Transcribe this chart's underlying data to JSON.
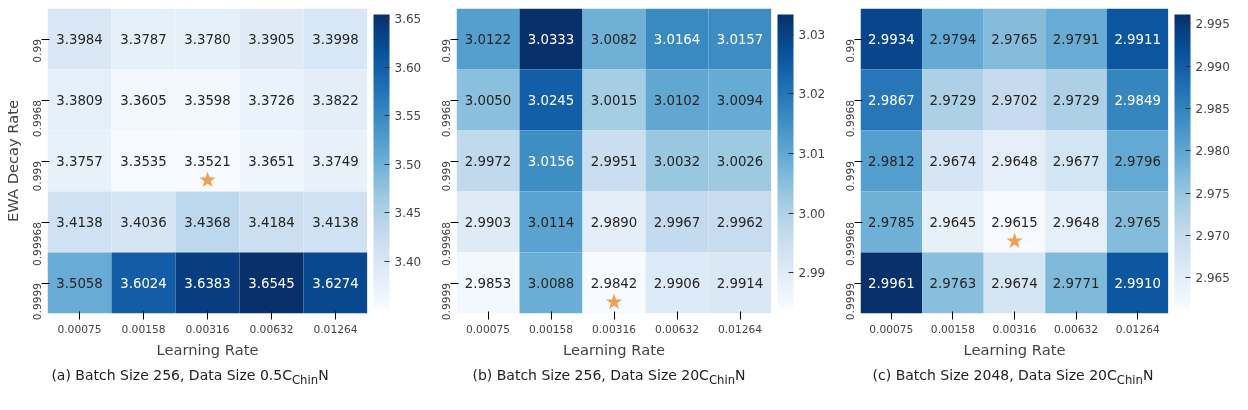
{
  "chart_data": [
    {
      "type": "heatmap",
      "title": "(a) Batch Size 256, Data Size 0.5C$_{Chin}$N",
      "xlabel": "Learning Rate",
      "ylabel": "EWA Decay Rate",
      "categories": [
        "0.00075",
        "0.00158",
        "0.00316",
        "0.00632",
        "0.01264"
      ],
      "y_categories": [
        "0.99",
        "0.9968",
        "0.999",
        "0.99968",
        "0.9999"
      ],
      "cells": [
        [
          3.3984,
          3.3787,
          3.378,
          3.3905,
          3.3998
        ],
        [
          3.3809,
          3.3605,
          3.3598,
          3.3726,
          3.3822
        ],
        [
          3.3757,
          3.3535,
          3.3521,
          3.3651,
          3.3749
        ],
        [
          3.4138,
          3.4036,
          3.4368,
          3.4184,
          3.4138
        ],
        [
          3.5058,
          3.6024,
          3.6383,
          3.6545,
          3.6274
        ]
      ],
      "cell_labels": [
        [
          "3.3984",
          "3.3787",
          "3.3780",
          "3.3905",
          "3.3998"
        ],
        [
          "3.3809",
          "3.3605",
          "3.3598",
          "3.3726",
          "3.3822"
        ],
        [
          "3.3757",
          "3.3535",
          "3.3521",
          "3.3651",
          "3.3749"
        ],
        [
          "3.4138",
          "3.4036",
          "3.4368",
          "3.4184",
          "3.4138"
        ],
        [
          "3.5058",
          "3.6024",
          "3.6383",
          "3.6545",
          "3.6274"
        ]
      ],
      "clim": [
        3.3521,
        3.6545
      ],
      "cticks": [
        {
          "value": 3.4,
          "label": "3.40"
        },
        3.45,
        {
          "value": 3.5,
          "label": "3.50"
        },
        3.55,
        {
          "value": 3.6,
          "label": "3.60"
        },
        3.65
      ],
      "annotations": [
        "★"
      ]
    },
    {
      "type": "heatmap",
      "title": "(b) Batch Size 256, Data Size 20C$_{Chin}$N",
      "xlabel": "Learning Rate",
      "categories": [
        "0.00075",
        "0.00158",
        "0.00316",
        "0.00632",
        "0.01264"
      ],
      "y_categories": [
        "0.99",
        "0.9968",
        "0.999",
        "0.99968",
        "0.9999"
      ],
      "cells": [
        [
          3.0122,
          3.0333,
          3.0082,
          3.0164,
          3.0157
        ],
        [
          3.005,
          3.0245,
          3.0015,
          3.0102,
          3.0094
        ],
        [
          2.9972,
          3.0156,
          2.9951,
          3.0032,
          3.0026
        ],
        [
          2.9903,
          3.0114,
          2.989,
          2.9967,
          2.9962
        ],
        [
          2.9853,
          3.0088,
          2.9842,
          2.9906,
          2.9914
        ]
      ],
      "cell_labels": [
        [
          "3.0122",
          "3.0333",
          "3.0082",
          "3.0164",
          "3.0157"
        ],
        [
          "3.0050",
          "3.0245",
          "3.0015",
          "3.0102",
          "3.0094"
        ],
        [
          "2.9972",
          "3.0156",
          "2.9951",
          "3.0032",
          "3.0026"
        ],
        [
          "2.9903",
          "3.0114",
          "2.9890",
          "2.9967",
          "2.9962"
        ],
        [
          "2.9853",
          "3.0088",
          "2.9842",
          "2.9906",
          "2.9914"
        ]
      ],
      "clim": [
        2.9842,
        3.0333
      ],
      "cticks": [
        2.99,
        {
          "value": 3.0,
          "label": "3.00"
        },
        3.01,
        3.02,
        3.03
      ],
      "annotations": [
        "★"
      ]
    },
    {
      "type": "heatmap",
      "title": "(c) Batch Size 2048, Data Size 20C$_{Chin}$N",
      "xlabel": "Learning Rate",
      "categories": [
        "0.00075",
        "0.00158",
        "0.00316",
        "0.00632",
        "0.01264"
      ],
      "y_categories": [
        "0.99",
        "0.9968",
        "0.999",
        "0.99968",
        "0.9999"
      ],
      "cells": [
        [
          2.9934,
          2.9794,
          2.9765,
          2.9791,
          2.9911
        ],
        [
          2.9867,
          2.9729,
          2.9702,
          2.9729,
          2.9849
        ],
        [
          2.9812,
          2.9674,
          2.9648,
          2.9677,
          2.9796
        ],
        [
          2.9785,
          2.9645,
          2.9615,
          2.9648,
          2.9765
        ],
        [
          2.9961,
          2.9763,
          2.9674,
          2.9771,
          2.991
        ]
      ],
      "cell_labels": [
        [
          "2.9934",
          "2.9794",
          "2.9765",
          "2.9791",
          "2.9911"
        ],
        [
          "2.9867",
          "2.9729",
          "2.9702",
          "2.9729",
          "2.9849"
        ],
        [
          "2.9812",
          "2.9674",
          "2.9648",
          "2.9677",
          "2.9796"
        ],
        [
          "2.9785",
          "2.9645",
          "2.9615",
          "2.9648",
          "2.9765"
        ],
        [
          "2.9961",
          "2.9763",
          "2.9674",
          "2.9771",
          "2.9910"
        ]
      ],
      "clim": [
        2.9615,
        2.9961
      ],
      "cticks": [
        2.965,
        {
          "value": 2.97,
          "label": "2.970"
        },
        2.975,
        {
          "value": 2.98,
          "label": "2.980"
        },
        2.985,
        {
          "value": 2.99,
          "label": "2.990"
        },
        2.995
      ],
      "annotations": [
        "★"
      ]
    }
  ]
}
